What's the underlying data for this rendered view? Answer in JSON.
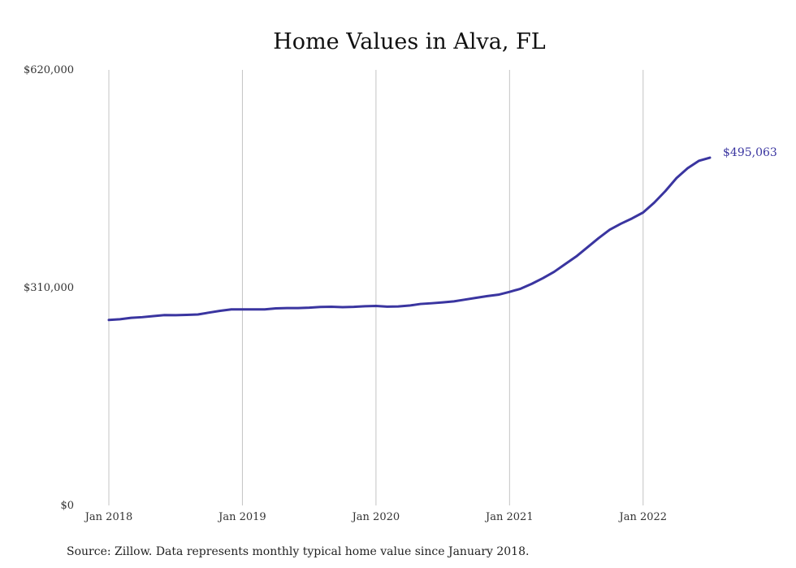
{
  "chart_data": {
    "type": "line",
    "title": "Home Values in Alva, FL",
    "xlabel": "",
    "ylabel": "",
    "y_ticks": [
      "$620,000",
      "$310,000",
      "$0"
    ],
    "y_tick_values": [
      620000,
      310000,
      0
    ],
    "ylim": [
      0,
      620000
    ],
    "x_ticks": [
      "Jan 2018",
      "Jan 2019",
      "Jan 2020",
      "Jan 2021",
      "Jan 2022"
    ],
    "x_tick_values": [
      "2018-01",
      "2019-01",
      "2020-01",
      "2021-01",
      "2022-01"
    ],
    "xlim": [
      "2018-01",
      "2022-07"
    ],
    "grid": "vertical",
    "legend": "none",
    "line_color": "#3a35a0",
    "end_label": "$495,063",
    "series": [
      {
        "x": [
          "2018-01",
          "2018-02",
          "2018-03",
          "2018-04",
          "2018-05",
          "2018-06",
          "2018-07",
          "2018-08",
          "2018-09",
          "2018-10",
          "2018-11",
          "2018-12",
          "2019-01",
          "2019-02",
          "2019-03",
          "2019-04",
          "2019-05",
          "2019-06",
          "2019-07",
          "2019-08",
          "2019-09",
          "2019-10",
          "2019-11",
          "2019-12",
          "2020-01",
          "2020-02",
          "2020-03",
          "2020-04",
          "2020-05",
          "2020-06",
          "2020-07",
          "2020-08",
          "2020-09",
          "2020-10",
          "2020-11",
          "2020-12",
          "2021-01",
          "2021-02",
          "2021-03",
          "2021-04",
          "2021-05",
          "2021-06",
          "2021-07",
          "2021-08",
          "2021-09",
          "2021-10",
          "2021-11",
          "2021-12",
          "2022-01",
          "2022-02",
          "2022-03",
          "2022-04",
          "2022-05",
          "2022-06",
          "2022-07"
        ],
        "values": [
          264000,
          265000,
          267000,
          268000,
          269500,
          271000,
          270800,
          271200,
          271800,
          274500,
          277000,
          279000,
          279000,
          279000,
          279000,
          280500,
          281000,
          281000,
          281500,
          282500,
          282800,
          282300,
          282700,
          283500,
          284000,
          283000,
          283200,
          284500,
          286800,
          287800,
          289000,
          290500,
          293000,
          295500,
          298000,
          300000,
          304000,
          308500,
          315500,
          323500,
          332500,
          343500,
          354500,
          367500,
          380500,
          392500,
          401000,
          408500,
          417000,
          431000,
          447500,
          466000,
          480000,
          490500,
          495063
        ]
      }
    ]
  },
  "source_note": "Source: Zillow. Data represents monthly typical home value since January 2018."
}
